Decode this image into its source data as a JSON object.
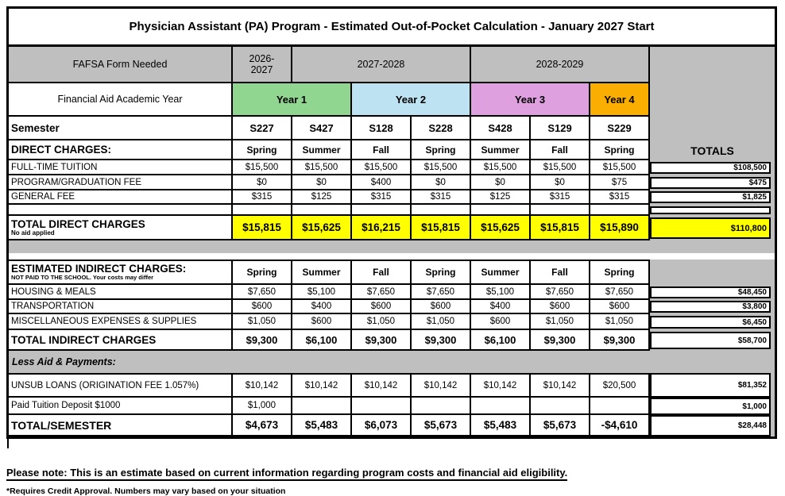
{
  "title": "Physician Assistant (PA) Program - Estimated Out-of-Pocket Calculation - January 2027 Start",
  "colors": {
    "year1_green": "#90D590",
    "year2_blue": "#BDE3F2",
    "year3_pink": "#DFA0DF",
    "year4_orange": "#FAAF00",
    "header_gray": "#BFBFBF",
    "highlight_yellow": "#FFFF00"
  },
  "header": {
    "fafsa_label": "FAFSA Form Needed",
    "fafsa_years": [
      "2026-2027",
      "2027-2028",
      "2028-2029"
    ],
    "academic_year_label": "Financial Aid Academic Year",
    "year_labels": [
      "Year 1",
      "Year 2",
      "Year 3",
      "Year 4"
    ],
    "semester_label": "Semester",
    "semesters": [
      "S227",
      "S427",
      "S128",
      "S228",
      "S428",
      "S129",
      "S229"
    ],
    "totals_label": "TOTALS"
  },
  "direct": {
    "header": "DIRECT CHARGES:",
    "seasons": [
      "Spring",
      "Summer",
      "Fall",
      "Spring",
      "Summer",
      "Fall",
      "Spring"
    ],
    "rows": [
      {
        "label": "FULL-TIME TUITION",
        "values": [
          "$15,500",
          "$15,500",
          "$15,500",
          "$15,500",
          "$15,500",
          "$15,500",
          "$15,500"
        ],
        "total": "$108,500"
      },
      {
        "label": "PROGRAM/GRADUATION FEE",
        "values": [
          "$0",
          "$0",
          "$400",
          "$0",
          "$0",
          "$0",
          "$75"
        ],
        "total": "$475"
      },
      {
        "label": "GENERAL FEE",
        "values": [
          "$315",
          "$125",
          "$315",
          "$315",
          "$125",
          "$315",
          "$315"
        ],
        "total": "$1,825"
      }
    ],
    "total_row": {
      "label": "TOTAL DIRECT CHARGES",
      "sublabel": "No aid applied",
      "values": [
        "$15,815",
        "$15,625",
        "$16,215",
        "$15,815",
        "$15,625",
        "$15,815",
        "$15,890"
      ],
      "total": "$110,800"
    }
  },
  "indirect": {
    "header": "ESTIMATED INDIRECT CHARGES:",
    "subheader": "NOT PAID TO THE SCHOOL. Your costs may differ",
    "seasons": [
      "Spring",
      "Summer",
      "Fall",
      "Spring",
      "Summer",
      "Fall",
      "Spring"
    ],
    "rows": [
      {
        "label": "HOUSING & MEALS",
        "values": [
          "$7,650",
          "$5,100",
          "$7,650",
          "$7,650",
          "$5,100",
          "$7,650",
          "$7,650"
        ],
        "total": "$48,450"
      },
      {
        "label": "TRANSPORTATION",
        "values": [
          "$600",
          "$400",
          "$600",
          "$600",
          "$400",
          "$600",
          "$600"
        ],
        "total": "$3,800"
      },
      {
        "label": "MISCELLANEOUS EXPENSES & SUPPLIES",
        "values": [
          "$1,050",
          "$600",
          "$1,050",
          "$1,050",
          "$600",
          "$1,050",
          "$1,050"
        ],
        "total": "$6,450"
      }
    ],
    "total_row": {
      "label": "TOTAL INDIRECT CHARGES",
      "values": [
        "$9,300",
        "$6,100",
        "$9,300",
        "$9,300",
        "$6,100",
        "$9,300",
        "$9,300"
      ],
      "total": "$58,700"
    }
  },
  "aid": {
    "header": "Less Aid & Payments:",
    "rows": [
      {
        "label": "UNSUB LOANS (ORIGINATION FEE 1.057%)",
        "values": [
          "$10,142",
          "$10,142",
          "$10,142",
          "$10,142",
          "$10,142",
          "$10,142",
          "$20,500"
        ],
        "total": "$81,352"
      },
      {
        "label": "Paid Tuition Deposit $1000",
        "values": [
          "$1,000",
          "",
          "",
          "",
          "",
          "",
          ""
        ],
        "total": "$1,000"
      }
    ],
    "total_row": {
      "label": "TOTAL/SEMESTER",
      "values": [
        "$4,673",
        "$5,483",
        "$6,073",
        "$5,673",
        "$5,483",
        "$5,673",
        "-$4,610"
      ],
      "total": "$28,448"
    }
  },
  "footer": {
    "note": "Please note: This is an estimate based on current information regarding program costs and financial aid eligibility.",
    "disclaimer": "*Requires Credit Approval. Numbers may vary based on your situation"
  }
}
